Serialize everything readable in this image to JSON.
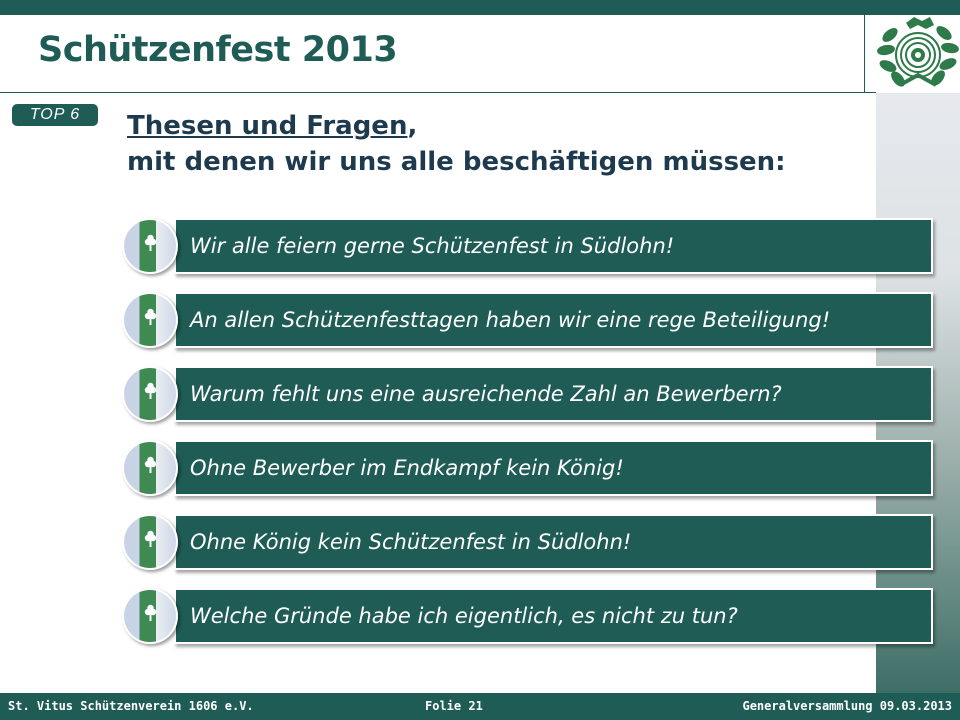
{
  "slide": {
    "title": "Schützenfest 2013",
    "badge": "TOP 6",
    "heading_line1_underlined": "Thesen und Fragen",
    "heading_line1_rest": ",",
    "heading_line2": "mit denen wir uns alle beschäftigen müssen:"
  },
  "items": [
    {
      "text": "Wir alle feiern gerne Schützenfest in Südlohn!"
    },
    {
      "text": "An allen Schützenfesttagen haben wir eine rege Beteiligung!"
    },
    {
      "text": "Warum fehlt uns eine ausreichende Zahl an Bewerbern?"
    },
    {
      "text": "Ohne Bewerber im Endkampf kein König!"
    },
    {
      "text": "Ohne König kein Schützenfest in Südlohn!"
    },
    {
      "text": "Welche Gründe habe ich eigentlich, es nicht zu tun?"
    }
  ],
  "footer": {
    "left": "St. Vitus Schützenverein 1606 e.V.",
    "middle": "Folie  21",
    "right": "Generalversammlung 09.03.2013"
  },
  "icons": {
    "logo": "shooting-club-emblem-icon",
    "item_bullet": "flag-emblem-icon"
  },
  "colors": {
    "primary": "#1e5c55",
    "heading_text": "#1e3a4f"
  }
}
